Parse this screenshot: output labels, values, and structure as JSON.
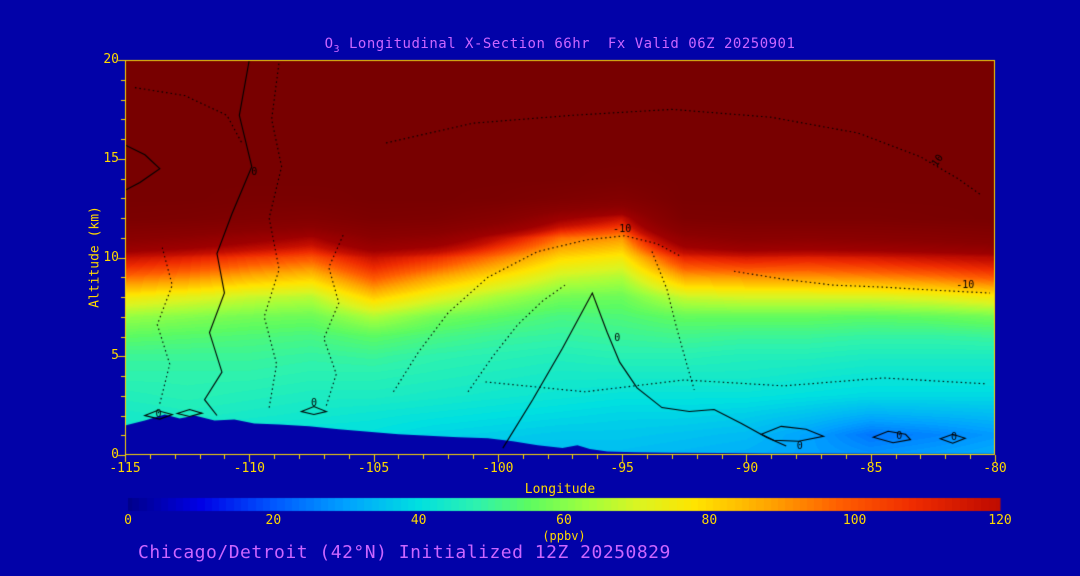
{
  "title": {
    "prefix": "O",
    "sub": "3",
    "rest": " Longitudinal X-Section 66hr  Fx Valid 06Z 20250901"
  },
  "footer": {
    "text": "Chicago/Detroit (42°N) Initialized 12Z 20250829"
  },
  "axes": {
    "x_label": "Longitude",
    "y_label": "Altitude (km)",
    "x_range": [
      -115,
      -80
    ],
    "y_range": [
      0,
      20
    ],
    "x_ticks": [
      -115,
      -110,
      -105,
      -100,
      -95,
      -90,
      -85,
      -80
    ],
    "y_ticks": [
      0,
      5,
      10,
      15,
      20
    ],
    "x_minor_step": 1,
    "y_minor_step": 1
  },
  "colorbar": {
    "label": "(ppbv)",
    "ticks": [
      0,
      20,
      40,
      60,
      80,
      100,
      120
    ],
    "range": [
      0,
      120
    ]
  },
  "colors": {
    "background": "#0202a8",
    "accent_text": "#cc66ff",
    "axis_text": "#ffd900",
    "contour": "#000000"
  },
  "chart_data": {
    "type": "heatmap",
    "title": "O3 Longitudinal X-Section 66hr Fx Valid 06Z 20250901",
    "xlabel": "Longitude",
    "ylabel": "Altitude (km)",
    "unit": "ppbv",
    "x_values": [
      -115,
      -112.5,
      -110,
      -107.5,
      -105,
      -102.5,
      -100,
      -97.5,
      -95,
      -92.5,
      -90,
      -87.5,
      -85,
      -82.5,
      -80
    ],
    "y_values": [
      0,
      1,
      2,
      3,
      4,
      5,
      6,
      7,
      8,
      9,
      10,
      11,
      12,
      13,
      14,
      15,
      16,
      17,
      18,
      19,
      20
    ],
    "values": [
      [
        40,
        40,
        38,
        38,
        38,
        36,
        35,
        34,
        34,
        33,
        32,
        30,
        28,
        30,
        32
      ],
      [
        42,
        42,
        41,
        40,
        40,
        38,
        37,
        36,
        36,
        35,
        34,
        30,
        24,
        26,
        29
      ],
      [
        44,
        45,
        44,
        43,
        42,
        41,
        40,
        39,
        38,
        38,
        37,
        35,
        32,
        33,
        34
      ],
      [
        46,
        47,
        46,
        45,
        45,
        44,
        43,
        42,
        41,
        41,
        41,
        40,
        39,
        39,
        39
      ],
      [
        48,
        48,
        48,
        47,
        47,
        46,
        45,
        44,
        44,
        44,
        44,
        43,
        42,
        42,
        42
      ],
      [
        50,
        50,
        50,
        49,
        50,
        48,
        47,
        46,
        47,
        47,
        46,
        46,
        45,
        45,
        45
      ],
      [
        55,
        54,
        53,
        52,
        55,
        52,
        50,
        49,
        50,
        51,
        50,
        50,
        49,
        49,
        50
      ],
      [
        62,
        60,
        58,
        57,
        65,
        58,
        55,
        52,
        53,
        56,
        56,
        56,
        55,
        56,
        58
      ],
      [
        76,
        72,
        68,
        66,
        82,
        72,
        64,
        58,
        57,
        68,
        70,
        70,
        70,
        72,
        76
      ],
      [
        96,
        92,
        86,
        82,
        100,
        88,
        78,
        68,
        65,
        88,
        90,
        90,
        92,
        95,
        100
      ],
      [
        118,
        112,
        105,
        100,
        118,
        108,
        94,
        80,
        76,
        110,
        114,
        112,
        114,
        118,
        122
      ],
      [
        165,
        155,
        140,
        128,
        160,
        150,
        120,
        96,
        90,
        150,
        165,
        160,
        165,
        170,
        180
      ],
      [
        210,
        205,
        195,
        185,
        205,
        200,
        175,
        135,
        118,
        205,
        210,
        210,
        210,
        215,
        220
      ],
      [
        220,
        220,
        215,
        215,
        220,
        220,
        215,
        200,
        185,
        220,
        220,
        220,
        220,
        220,
        220
      ],
      [
        220,
        220,
        220,
        220,
        220,
        220,
        220,
        220,
        215,
        220,
        220,
        220,
        220,
        220,
        220
      ],
      [
        220,
        220,
        220,
        220,
        220,
        220,
        220,
        220,
        220,
        220,
        220,
        220,
        220,
        220,
        220
      ],
      [
        220,
        220,
        220,
        220,
        220,
        220,
        220,
        220,
        220,
        220,
        220,
        220,
        220,
        220,
        220
      ],
      [
        220,
        220,
        220,
        220,
        220,
        220,
        220,
        220,
        220,
        220,
        220,
        220,
        220,
        220,
        220
      ],
      [
        220,
        220,
        220,
        220,
        220,
        220,
        220,
        220,
        220,
        220,
        220,
        220,
        220,
        220,
        220
      ],
      [
        220,
        220,
        220,
        220,
        220,
        220,
        220,
        220,
        220,
        220,
        220,
        220,
        220,
        220,
        220
      ],
      [
        220,
        220,
        220,
        220,
        220,
        220,
        220,
        220,
        220,
        220,
        220,
        220,
        220,
        220,
        220
      ]
    ],
    "colormap_stops": [
      [
        0,
        "#00008B"
      ],
      [
        10,
        "#0000E6"
      ],
      [
        20,
        "#0057FF"
      ],
      [
        30,
        "#00A2FF"
      ],
      [
        40,
        "#00E0E0"
      ],
      [
        48,
        "#2EF2AE"
      ],
      [
        55,
        "#5BFB62"
      ],
      [
        63,
        "#9EFF3E"
      ],
      [
        70,
        "#D9F522"
      ],
      [
        78,
        "#FFE400"
      ],
      [
        88,
        "#FFA600"
      ],
      [
        98,
        "#FF5E00"
      ],
      [
        108,
        "#EF2C00"
      ],
      [
        118,
        "#C60F00"
      ],
      [
        132,
        "#9E0000"
      ],
      [
        160,
        "#8B0000"
      ],
      [
        220,
        "#780000"
      ]
    ],
    "terrain": [
      [
        -115,
        1.5
      ],
      [
        -114.2,
        1.75
      ],
      [
        -113.4,
        2.05
      ],
      [
        -112.8,
        1.85
      ],
      [
        -112.2,
        2.0
      ],
      [
        -111.4,
        1.75
      ],
      [
        -110.6,
        1.8
      ],
      [
        -109.8,
        1.6
      ],
      [
        -108.8,
        1.55
      ],
      [
        -107.6,
        1.45
      ],
      [
        -106.4,
        1.3
      ],
      [
        -105.2,
        1.18
      ],
      [
        -104,
        1.05
      ],
      [
        -102.8,
        0.98
      ],
      [
        -101.6,
        0.9
      ],
      [
        -100.4,
        0.85
      ],
      [
        -99.4,
        0.7
      ],
      [
        -98.4,
        0.5
      ],
      [
        -97.4,
        0.35
      ],
      [
        -96.8,
        0.5
      ],
      [
        -96.3,
        0.3
      ],
      [
        -95.6,
        0.18
      ],
      [
        -94.5,
        0.14
      ],
      [
        -93,
        0.12
      ],
      [
        -91,
        0.1
      ],
      [
        -89,
        0.08
      ],
      [
        -87,
        0.07
      ],
      [
        -84,
        0.06
      ],
      [
        -82,
        0.06
      ],
      [
        -80,
        0.06
      ]
    ],
    "contours": [
      {
        "style": "solid",
        "label": "0",
        "label_pos": [
          -95.2,
          5.9
        ],
        "points": [
          [
            -99.8,
            0.35
          ],
          [
            -98.6,
            2.8
          ],
          [
            -97.4,
            5.4
          ],
          [
            -96.2,
            8.2
          ],
          [
            -95.6,
            6.2
          ],
          [
            -95.1,
            4.7
          ],
          [
            -94.4,
            3.4
          ],
          [
            -93.4,
            2.4
          ],
          [
            -92.3,
            2.2
          ],
          [
            -91.3,
            2.3
          ],
          [
            -90.2,
            1.6
          ],
          [
            -89.2,
            0.9
          ],
          [
            -88.4,
            0.45
          ]
        ]
      },
      {
        "style": "solid",
        "label": "0",
        "label_pos": [
          -109.8,
          14.3
        ],
        "points": [
          [
            -110.0,
            20
          ],
          [
            -110.4,
            17.2
          ],
          [
            -109.9,
            14.6
          ],
          [
            -110.7,
            12.2
          ],
          [
            -111.3,
            10.2
          ],
          [
            -111.0,
            8.2
          ],
          [
            -111.6,
            6.2
          ],
          [
            -111.1,
            4.2
          ],
          [
            -111.8,
            2.8
          ],
          [
            -111.3,
            2.0
          ]
        ]
      },
      {
        "style": "solid",
        "points": [
          [
            -115,
            15.7
          ],
          [
            -114.2,
            15.2
          ],
          [
            -113.6,
            14.5
          ],
          [
            -114.4,
            13.8
          ],
          [
            -115,
            13.4
          ]
        ]
      },
      {
        "style": "solid",
        "closed": true,
        "label": "0",
        "label_pos": [
          -113.65,
          2.05
        ],
        "points": [
          [
            -114.2,
            2.0
          ],
          [
            -113.7,
            2.25
          ],
          [
            -113.1,
            2.05
          ],
          [
            -113.6,
            1.82
          ]
        ]
      },
      {
        "style": "solid",
        "closed": true,
        "points": [
          [
            -112.9,
            2.1
          ],
          [
            -112.4,
            2.3
          ],
          [
            -111.9,
            2.12
          ],
          [
            -112.4,
            1.95
          ]
        ]
      },
      {
        "style": "solid",
        "closed": true,
        "label": "0",
        "label_pos": [
          -107.4,
          2.6
        ],
        "points": [
          [
            -107.9,
            2.2
          ],
          [
            -107.4,
            2.45
          ],
          [
            -106.9,
            2.2
          ],
          [
            -107.4,
            2.05
          ]
        ]
      },
      {
        "style": "solid",
        "closed": true,
        "label": "0",
        "label_pos": [
          -87.85,
          0.42
        ],
        "points": [
          [
            -89.4,
            1.05
          ],
          [
            -88.6,
            1.45
          ],
          [
            -87.6,
            1.3
          ],
          [
            -86.9,
            0.95
          ],
          [
            -87.9,
            0.7
          ],
          [
            -88.9,
            0.75
          ]
        ]
      },
      {
        "style": "solid",
        "closed": true,
        "label": "0",
        "label_pos": [
          -83.85,
          0.92
        ],
        "points": [
          [
            -84.9,
            0.9
          ],
          [
            -84.3,
            1.2
          ],
          [
            -83.6,
            1.05
          ],
          [
            -83.4,
            0.78
          ],
          [
            -84.1,
            0.62
          ]
        ]
      },
      {
        "style": "solid",
        "closed": true,
        "label": "0",
        "label_pos": [
          -81.65,
          0.9
        ],
        "points": [
          [
            -82.2,
            0.82
          ],
          [
            -81.7,
            1.05
          ],
          [
            -81.2,
            0.85
          ],
          [
            -81.7,
            0.6
          ]
        ]
      },
      {
        "style": "dotted",
        "points": [
          [
            -109.2,
            2.4
          ],
          [
            -108.9,
            4.6
          ],
          [
            -109.4,
            7.0
          ],
          [
            -108.8,
            9.4
          ],
          [
            -109.2,
            12.0
          ],
          [
            -108.7,
            14.6
          ],
          [
            -109.1,
            17.0
          ],
          [
            -108.8,
            19.9
          ]
        ]
      },
      {
        "style": "dotted",
        "points": [
          [
            -106.9,
            2.5
          ],
          [
            -106.5,
            4.1
          ],
          [
            -107.0,
            5.9
          ],
          [
            -106.4,
            7.7
          ],
          [
            -106.8,
            9.5
          ],
          [
            -106.2,
            11.2
          ]
        ]
      },
      {
        "style": "dotted",
        "points": [
          [
            -113.6,
            2.6
          ],
          [
            -113.2,
            4.6
          ],
          [
            -113.7,
            6.6
          ],
          [
            -113.1,
            8.6
          ],
          [
            -113.5,
            10.5
          ]
        ]
      },
      {
        "style": "dotted",
        "label": "-10",
        "label_pos": [
          -95.0,
          11.4
        ],
        "points": [
          [
            -104.2,
            3.2
          ],
          [
            -103.2,
            5.2
          ],
          [
            -102.0,
            7.2
          ],
          [
            -100.4,
            9.0
          ],
          [
            -98.4,
            10.3
          ],
          [
            -96.4,
            10.9
          ],
          [
            -94.9,
            11.1
          ],
          [
            -93.6,
            10.7
          ],
          [
            -92.7,
            10.1
          ]
        ]
      },
      {
        "style": "dotted",
        "label": "-10",
        "label_pos": [
          -81.2,
          8.6
        ],
        "points": [
          [
            -90.5,
            9.3
          ],
          [
            -88.5,
            8.9
          ],
          [
            -86.5,
            8.6
          ],
          [
            -84.5,
            8.5
          ],
          [
            -82.5,
            8.35
          ],
          [
            -80.2,
            8.2
          ]
        ]
      },
      {
        "style": "dotted",
        "label": "10",
        "label_pos": [
          -82.3,
          14.9
        ],
        "label_angle": -55,
        "points": [
          [
            -97.0,
            17.2
          ],
          [
            -93.0,
            17.5
          ],
          [
            -89.0,
            17.1
          ],
          [
            -85.5,
            16.3
          ],
          [
            -83.0,
            15.1
          ],
          [
            -81.5,
            14.0
          ],
          [
            -80.6,
            13.2
          ]
        ]
      },
      {
        "style": "dotted",
        "points": [
          [
            -104.5,
            15.8
          ],
          [
            -101.0,
            16.8
          ],
          [
            -97.0,
            17.2
          ]
        ]
      },
      {
        "style": "dotted",
        "points": [
          [
            -101.2,
            3.2
          ],
          [
            -100.2,
            5.0
          ],
          [
            -99.2,
            6.6
          ],
          [
            -98.2,
            7.8
          ],
          [
            -97.3,
            8.6
          ]
        ]
      },
      {
        "style": "dotted",
        "points": [
          [
            -100.5,
            3.7
          ],
          [
            -96.5,
            3.2
          ],
          [
            -92.5,
            3.8
          ],
          [
            -88.5,
            3.5
          ],
          [
            -84.5,
            3.9
          ],
          [
            -80.3,
            3.6
          ]
        ]
      },
      {
        "style": "dotted",
        "points": [
          [
            -114.6,
            18.6
          ],
          [
            -112.6,
            18.2
          ],
          [
            -110.9,
            17.2
          ],
          [
            -110.3,
            15.8
          ]
        ]
      },
      {
        "style": "dotted",
        "points": [
          [
            -93.8,
            10.3
          ],
          [
            -93.2,
            8.4
          ],
          [
            -92.8,
            6.4
          ],
          [
            -92.4,
            4.6
          ],
          [
            -92.1,
            3.3
          ]
        ]
      }
    ]
  }
}
